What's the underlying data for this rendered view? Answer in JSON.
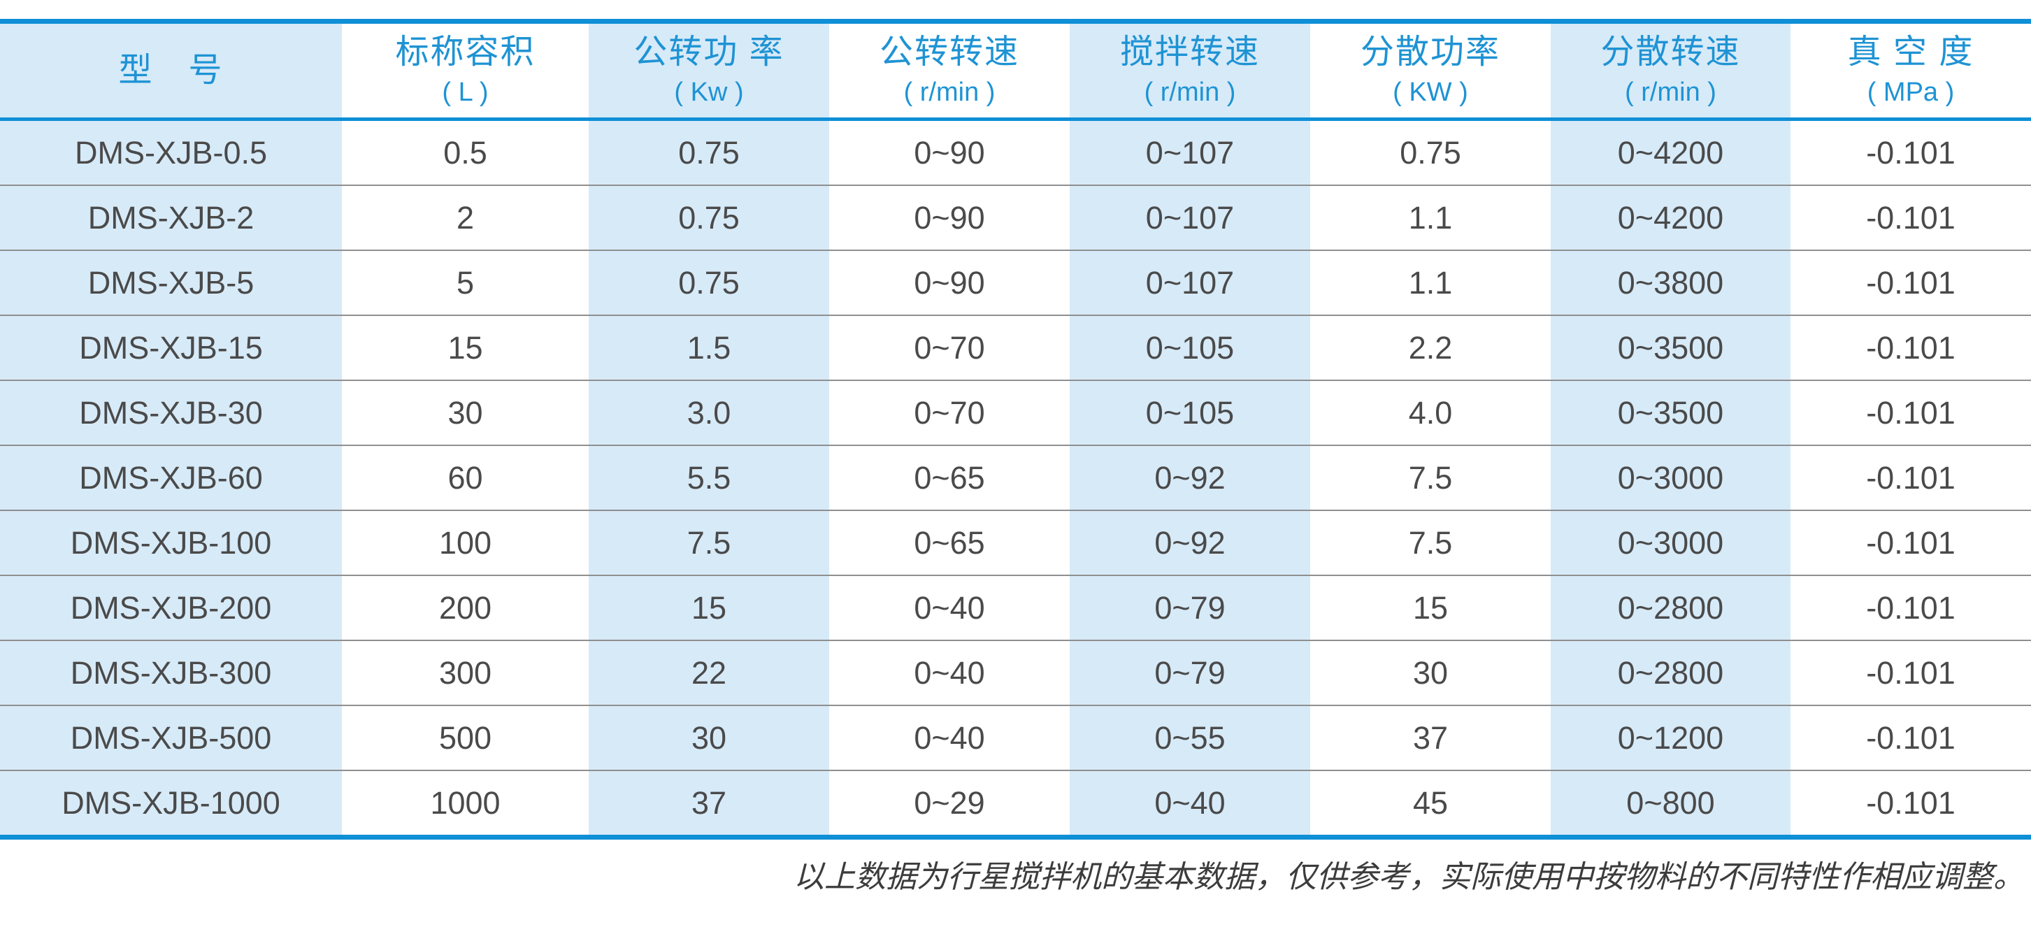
{
  "colors": {
    "border_blue": "#0f8fd6",
    "header_text_blue": "#1e93d4",
    "stripe_light_blue": "#d7eaf8",
    "cell_text_gray": "#4a4a4a",
    "row_separator_gray": "#8f8f8f"
  },
  "table": {
    "columns": [
      {
        "label": "型　号",
        "unit": ""
      },
      {
        "label": "标称容积",
        "unit": "( L )"
      },
      {
        "label": "公转功 率",
        "unit": "( Kw )"
      },
      {
        "label": "公转转速",
        "unit": "( r/min )"
      },
      {
        "label": "搅拌转速",
        "unit": "( r/min )"
      },
      {
        "label": "分散功率",
        "unit": "( KW )"
      },
      {
        "label": "分散转速",
        "unit": "( r/min )"
      },
      {
        "label": "真 空 度",
        "unit": "( MPa )"
      }
    ],
    "rows": [
      [
        "DMS-XJB-0.5",
        "0.5",
        "0.75",
        "0~90",
        "0~107",
        "0.75",
        "0~4200",
        "-0.101"
      ],
      [
        "DMS-XJB-2",
        "2",
        "0.75",
        "0~90",
        "0~107",
        "1.1",
        "0~4200",
        "-0.101"
      ],
      [
        "DMS-XJB-5",
        "5",
        "0.75",
        "0~90",
        "0~107",
        "1.1",
        "0~3800",
        "-0.101"
      ],
      [
        "DMS-XJB-15",
        "15",
        "1.5",
        "0~70",
        "0~105",
        "2.2",
        "0~3500",
        "-0.101"
      ],
      [
        "DMS-XJB-30",
        "30",
        "3.0",
        "0~70",
        "0~105",
        "4.0",
        "0~3500",
        "-0.101"
      ],
      [
        "DMS-XJB-60",
        "60",
        "5.5",
        "0~65",
        "0~92",
        "7.5",
        "0~3000",
        "-0.101"
      ],
      [
        "DMS-XJB-100",
        "100",
        "7.5",
        "0~65",
        "0~92",
        "7.5",
        "0~3000",
        "-0.101"
      ],
      [
        "DMS-XJB-200",
        "200",
        "15",
        "0~40",
        "0~79",
        "15",
        "0~2800",
        "-0.101"
      ],
      [
        "DMS-XJB-300",
        "300",
        "22",
        "0~40",
        "0~79",
        "30",
        "0~2800",
        "-0.101"
      ],
      [
        "DMS-XJB-500",
        "500",
        "30",
        "0~40",
        "0~55",
        "37",
        "0~1200",
        "-0.101"
      ],
      [
        "DMS-XJB-1000",
        "1000",
        "37",
        "0~29",
        "0~40",
        "45",
        "0~800",
        "-0.101"
      ]
    ]
  },
  "footer": {
    "note": "以上数据为行星搅拌机的基本数据，仅供参考，实际使用中按物料的不同特性作相应调整。"
  }
}
